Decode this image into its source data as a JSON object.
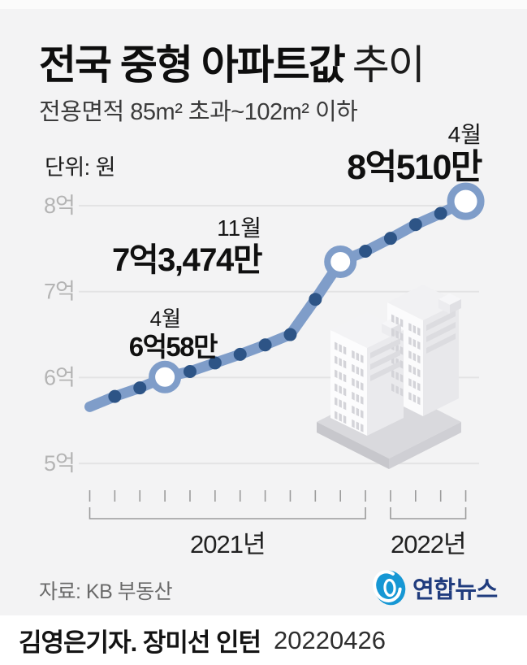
{
  "header": {
    "title_main": "전국 중형 아파트값",
    "title_sub": "추이",
    "subtitle": "전용면적 85m² 초과~102m² 이하",
    "unit_label": "단위: 원"
  },
  "chart_data": {
    "type": "line",
    "title": "전국 중형 아파트값 추이",
    "value_unit": "억 원",
    "x": [
      "2021-01",
      "2021-02",
      "2021-03",
      "2021-04",
      "2021-05",
      "2021-06",
      "2021-07",
      "2021-08",
      "2021-09",
      "2021-10",
      "2021-11",
      "2021-12",
      "2022-01",
      "2022-02",
      "2022-03",
      "2022-04"
    ],
    "values": [
      5.66,
      5.78,
      5.88,
      6.0058,
      6.07,
      6.17,
      6.27,
      6.38,
      6.5,
      6.91,
      7.3474,
      7.47,
      7.62,
      7.78,
      7.91,
      8.051
    ],
    "labeled_points": [
      {
        "x": "2021-04",
        "month_label": "4월",
        "value_label": "6억58만",
        "value": 6.0058
      },
      {
        "x": "2021-11",
        "month_label": "11월",
        "value_label": "7억3,474만",
        "value": 7.3474
      },
      {
        "x": "2022-04",
        "month_label": "4월",
        "value_label": "8억510만",
        "value": 8.051
      }
    ],
    "y_axis": {
      "ticks": [
        8,
        7,
        6,
        5
      ],
      "labels": [
        "8억",
        "7억",
        "6억",
        "5억"
      ],
      "range": [
        5,
        8
      ]
    },
    "x_groups": [
      {
        "label": "2021년",
        "months": 12
      },
      {
        "label": "2022년",
        "months": 4
      }
    ],
    "grid": true,
    "legend": false
  },
  "footer": {
    "source": "자료: KB 부동산",
    "logo_text": "연합뉴스",
    "byline": "김영은기자. 장미선 인턴",
    "date": "20220426"
  },
  "colors": {
    "line": "#7f9dc9",
    "dot": "#2d5486",
    "highlight_fill": "#ffffff",
    "background": "#f3f3f4",
    "gridline": "#e3e3e4",
    "axis_gray": "#b4b4b4",
    "tick_gray": "#9b9b9b",
    "logo_blue": "#1697d4",
    "logo_navy": "#203c7e"
  }
}
